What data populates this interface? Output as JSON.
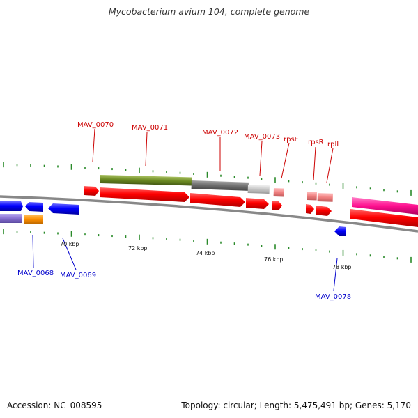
{
  "title": "Mycobacterium avium 104, complete genome",
  "footer": {
    "accession": "Accession: NC_008595",
    "info": "Topology: circular; Length: 5,475,491 bp; Genes: 5,170"
  },
  "colors": {
    "forward_label": "#cc0000",
    "reverse_label": "#0000cc",
    "cds": "#ff0000",
    "backbone": "#888888",
    "tick": "#2a8a2a"
  },
  "gene_labels": [
    {
      "name": "MAV_0070",
      "strand": "forward"
    },
    {
      "name": "MAV_0071",
      "strand": "forward"
    },
    {
      "name": "MAV_0072",
      "strand": "forward"
    },
    {
      "name": "MAV_0073",
      "strand": "forward"
    },
    {
      "name": "rpsF",
      "strand": "forward"
    },
    {
      "name": "rpsR",
      "strand": "forward"
    },
    {
      "name": "rplI",
      "strand": "forward"
    },
    {
      "name": "MAV_0068",
      "strand": "reverse"
    },
    {
      "name": "MAV_0069",
      "strand": "reverse"
    },
    {
      "name": "MAV_0078",
      "strand": "reverse"
    }
  ],
  "scale_labels": [
    "70 kbp",
    "72 kbp",
    "74 kbp",
    "76 kbp",
    "78 kbp"
  ]
}
